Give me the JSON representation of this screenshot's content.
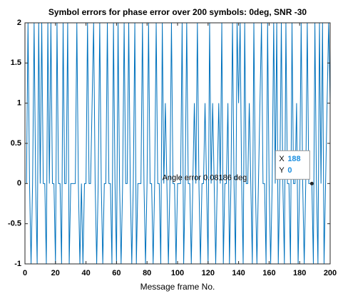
{
  "chart_data": {
    "type": "line",
    "title": "Symbol errors for phase error over 200 symbols: 0deg, SNR -30",
    "xlabel": "Message frame No.",
    "annotation": {
      "text": "Angle error 0.08186 deg",
      "x": 90,
      "y": 0.07
    },
    "datatip": {
      "x_label": "X",
      "x": 188,
      "y_label": "Y",
      "y": 0
    },
    "color": "#0072bd",
    "xlim": [
      0,
      200
    ],
    "xticks": [
      0,
      20,
      40,
      60,
      80,
      100,
      120,
      140,
      160,
      180,
      200
    ],
    "ylim": [
      -1,
      2
    ],
    "yticks": [
      -1,
      -0.5,
      0,
      0.5,
      1,
      1.5,
      2
    ],
    "x": [
      1,
      2,
      3,
      4,
      5,
      6,
      7,
      8,
      9,
      10,
      11,
      12,
      13,
      14,
      15,
      16,
      17,
      18,
      19,
      20,
      21,
      22,
      23,
      24,
      25,
      26,
      27,
      28,
      29,
      30,
      31,
      32,
      33,
      34,
      35,
      36,
      37,
      38,
      39,
      40,
      41,
      42,
      43,
      44,
      45,
      46,
      47,
      48,
      49,
      50,
      51,
      52,
      53,
      54,
      55,
      56,
      57,
      58,
      59,
      60,
      61,
      62,
      63,
      64,
      65,
      66,
      67,
      68,
      69,
      70,
      71,
      72,
      73,
      74,
      75,
      76,
      77,
      78,
      79,
      80,
      81,
      82,
      83,
      84,
      85,
      86,
      87,
      88,
      89,
      90,
      91,
      92,
      93,
      94,
      95,
      96,
      97,
      98,
      99,
      100,
      101,
      102,
      103,
      104,
      105,
      106,
      107,
      108,
      109,
      110,
      111,
      112,
      113,
      114,
      115,
      116,
      117,
      118,
      119,
      120,
      121,
      122,
      123,
      124,
      125,
      126,
      127,
      128,
      129,
      130,
      131,
      132,
      133,
      134,
      135,
      136,
      137,
      138,
      139,
      140,
      141,
      142,
      143,
      144,
      145,
      146,
      147,
      148,
      149,
      150,
      151,
      152,
      153,
      154,
      155,
      156,
      157,
      158,
      159,
      160,
      161,
      162,
      163,
      164,
      165,
      166,
      167,
      168,
      169,
      170,
      171,
      172,
      173,
      174,
      175,
      176,
      177,
      178,
      179,
      180,
      181,
      182,
      183,
      184,
      185,
      186,
      187,
      188,
      189,
      190,
      191,
      192,
      193,
      194,
      195,
      196,
      197,
      198,
      199,
      200
    ],
    "values": [
      0,
      2,
      0,
      -1,
      0,
      2,
      0,
      -1,
      2,
      0,
      2,
      0,
      0,
      -1,
      2,
      0,
      2,
      0,
      0,
      -1,
      2,
      0,
      0,
      -1,
      2,
      0,
      0,
      2,
      -1,
      0,
      0,
      0,
      0,
      2,
      0,
      -1,
      0,
      -1,
      0,
      0,
      2,
      0,
      0,
      1,
      2,
      0,
      -1,
      0,
      2,
      0,
      -1,
      0,
      0,
      2,
      0,
      0,
      -1,
      2,
      0,
      -1,
      2,
      0,
      -1,
      0,
      2,
      0,
      0,
      2,
      0,
      -1,
      0,
      2,
      -1,
      0,
      0,
      0,
      2,
      0,
      -1,
      0,
      2,
      0,
      0,
      -1,
      0,
      2,
      0,
      0,
      -1,
      2,
      0,
      1,
      0,
      -1,
      0,
      2,
      0,
      0,
      -1,
      0,
      0,
      0,
      2,
      -1,
      0,
      2,
      0,
      0,
      -1,
      0,
      1,
      0,
      2,
      0,
      -1,
      0,
      0,
      1,
      0,
      -1,
      2,
      0,
      1,
      0,
      -1,
      0,
      1,
      0,
      2,
      -1,
      0,
      0,
      1,
      -1,
      0,
      2,
      0,
      -1,
      2,
      1,
      2,
      0,
      -1,
      2,
      0,
      0,
      1,
      0,
      -1,
      2,
      0,
      -1,
      0,
      1,
      2,
      0,
      0,
      -1,
      2,
      0,
      -1,
      0,
      2,
      0,
      2,
      -1,
      0,
      2,
      0,
      -1,
      2,
      0,
      0,
      -1,
      2,
      0,
      0,
      1,
      -1,
      0,
      2,
      0,
      -1,
      0,
      2,
      0,
      0,
      0,
      -1,
      2,
      0,
      -1,
      2,
      0,
      2,
      -1,
      0,
      1,
      2,
      1
    ]
  }
}
